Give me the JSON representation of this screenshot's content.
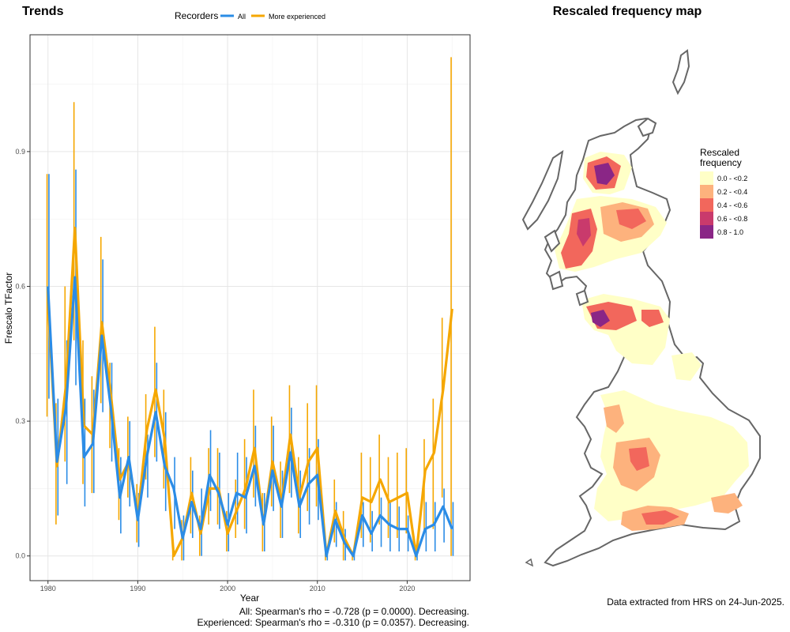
{
  "chart_data": [
    {
      "type": "line",
      "title": "Trends",
      "xlabel": "Year",
      "ylabel": "Frescalo TFactor",
      "xlim": [
        1978,
        2027
      ],
      "ylim": [
        -0.055,
        1.16
      ],
      "xticks": [
        1980,
        1990,
        2000,
        2010,
        2020
      ],
      "yticks": [
        "0.0",
        "0.3",
        "0.6",
        "0.9"
      ],
      "ytick_values": [
        0,
        0.3,
        0.6,
        0.9
      ],
      "grid": true,
      "legend": {
        "title": "Recorders",
        "placement": "top"
      },
      "x": [
        1980,
        1981,
        1982,
        1983,
        1984,
        1985,
        1986,
        1987,
        1988,
        1989,
        1990,
        1991,
        1992,
        1993,
        1994,
        1995,
        1996,
        1997,
        1998,
        1999,
        2000,
        2001,
        2002,
        2003,
        2004,
        2005,
        2006,
        2007,
        2008,
        2009,
        2010,
        2011,
        2012,
        2013,
        2014,
        2015,
        2016,
        2017,
        2018,
        2019,
        2020,
        2021,
        2022,
        2023,
        2024,
        2025
      ],
      "series": [
        {
          "name": "All",
          "color": "#2b8ce6",
          "values": [
            0.6,
            0.21,
            0.33,
            0.62,
            0.22,
            0.25,
            0.49,
            0.33,
            0.13,
            0.22,
            0.08,
            0.22,
            0.32,
            0.2,
            0.15,
            0.04,
            0.12,
            0.06,
            0.18,
            0.14,
            0.07,
            0.14,
            0.13,
            0.2,
            0.07,
            0.19,
            0.11,
            0.23,
            0.11,
            0.16,
            0.18,
            0.0,
            0.08,
            0.03,
            0.0,
            0.09,
            0.05,
            0.09,
            0.07,
            0.06,
            0.06,
            0.0,
            0.06,
            0.07,
            0.11,
            0.06
          ],
          "err_low": [
            0.35,
            0.09,
            0.16,
            0.38,
            0.11,
            0.14,
            0.32,
            0.21,
            0.05,
            0.11,
            0.02,
            0.13,
            0.21,
            0.1,
            0.06,
            -0.01,
            0.04,
            0.0,
            0.1,
            0.06,
            0.01,
            0.07,
            0.05,
            0.11,
            0.01,
            0.1,
            0.04,
            0.13,
            0.04,
            0.07,
            0.08,
            -0.01,
            0.02,
            -0.01,
            -0.01,
            0.02,
            0.01,
            0.02,
            0.01,
            0.01,
            0.01,
            -0.01,
            0.01,
            0.01,
            0.03,
            0.0
          ],
          "err_high": [
            0.85,
            0.35,
            0.48,
            0.86,
            0.35,
            0.37,
            0.66,
            0.43,
            0.22,
            0.3,
            0.14,
            0.27,
            0.43,
            0.32,
            0.22,
            0.09,
            0.19,
            0.15,
            0.28,
            0.23,
            0.14,
            0.23,
            0.22,
            0.29,
            0.14,
            0.29,
            0.19,
            0.33,
            0.19,
            0.24,
            0.26,
            0.01,
            0.12,
            0.06,
            0.01,
            0.12,
            0.1,
            0.13,
            0.12,
            0.11,
            0.09,
            0.01,
            0.12,
            0.12,
            0.15,
            0.12
          ]
        },
        {
          "name": "More experienced",
          "color": "#f5a700",
          "values": [
            0.57,
            0.2,
            0.38,
            0.73,
            0.29,
            0.27,
            0.52,
            0.36,
            0.17,
            0.21,
            0.09,
            0.28,
            0.37,
            0.26,
            0.0,
            0.04,
            0.14,
            0.05,
            0.15,
            0.15,
            0.05,
            0.1,
            0.15,
            0.24,
            0.07,
            0.21,
            0.12,
            0.27,
            0.13,
            0.21,
            0.24,
            0.0,
            0.1,
            0.04,
            0.0,
            0.13,
            0.12,
            0.17,
            0.12,
            0.13,
            0.14,
            0.0,
            0.19,
            0.23,
            0.37,
            0.55
          ],
          "err_low": [
            0.31,
            0.07,
            0.21,
            0.48,
            0.16,
            0.14,
            0.34,
            0.24,
            0.08,
            0.13,
            0.03,
            0.17,
            0.22,
            0.15,
            -0.01,
            -0.01,
            0.05,
            0.0,
            0.07,
            0.07,
            0.01,
            0.04,
            0.06,
            0.13,
            0.01,
            0.11,
            0.04,
            0.14,
            0.05,
            0.1,
            0.11,
            -0.01,
            0.03,
            -0.01,
            -0.01,
            0.04,
            0.03,
            0.07,
            0.04,
            0.04,
            0.05,
            -0.01,
            0.05,
            0.06,
            0.13,
            0.0
          ],
          "err_high": [
            0.85,
            0.34,
            0.6,
            1.01,
            0.48,
            0.4,
            0.71,
            0.43,
            0.24,
            0.31,
            0.16,
            0.36,
            0.51,
            0.37,
            0.01,
            0.08,
            0.22,
            0.09,
            0.24,
            0.24,
            0.1,
            0.17,
            0.26,
            0.37,
            0.14,
            0.31,
            0.21,
            0.38,
            0.22,
            0.34,
            0.38,
            0.01,
            0.17,
            0.1,
            0.01,
            0.23,
            0.22,
            0.27,
            0.22,
            0.23,
            0.24,
            0.01,
            0.26,
            0.35,
            0.53,
            1.11
          ]
        }
      ],
      "annotations": [
        "All: Spearman's rho = -0.728 (p = 0.0000). Decreasing.",
        "Experienced: Spearman's rho = -0.310 (p = 0.0357). Decreasing."
      ]
    },
    {
      "type": "heatmap",
      "title": "Rescaled frequency map",
      "legend": {
        "title_line1": "Rescaled",
        "title_line2": "frequency",
        "placement": "right",
        "classes": [
          {
            "label": "0.0 - <0.2",
            "color": "#ffffc7"
          },
          {
            "label": "0.2 - <0.4",
            "color": "#fdb27d"
          },
          {
            "label": "0.4 - <0.6",
            "color": "#f2675c"
          },
          {
            "label": "0.6 - <0.8",
            "color": "#c93a6c"
          },
          {
            "label": "0.8 - 1.0",
            "color": "#8a2686"
          }
        ]
      },
      "caption": "Data extracted from HRS on 24-Jun-2025."
    }
  ]
}
